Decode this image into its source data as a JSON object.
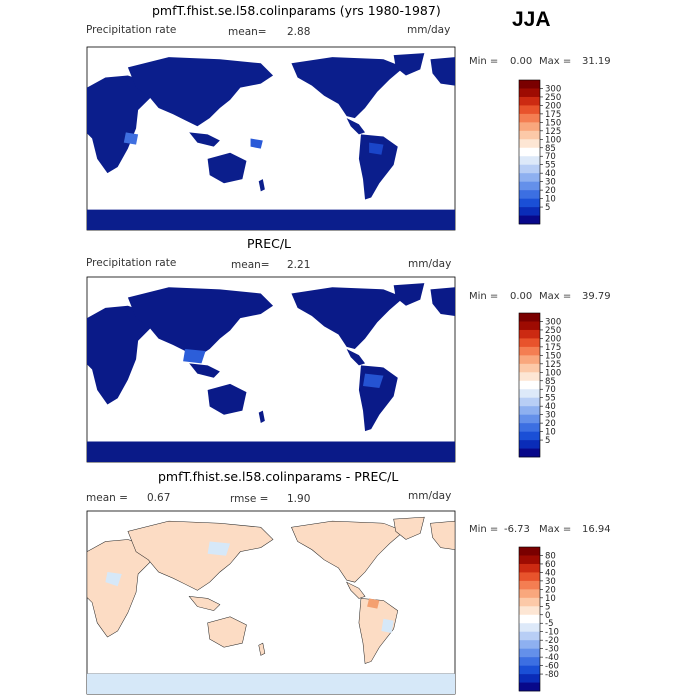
{
  "season": "JJA",
  "colors": {
    "ocean": "#ffffff",
    "land_low": "#0b1e8c",
    "diff_pos": "#fcdcc4",
    "diff_neg": "#d6e8f8"
  },
  "colorbar_palette_precip": [
    "#08088a",
    "#0a2cb8",
    "#1a4fd6",
    "#3c6fe2",
    "#6490ea",
    "#8eb0f0",
    "#b8cef5",
    "#dde9f9",
    "#ffffff",
    "#fde6d4",
    "#fcc9a8",
    "#f9a77d",
    "#f47e52",
    "#e8532c",
    "#cc2a12",
    "#9e0b02",
    "#7a0000"
  ],
  "colorbar_palette_diff": [
    "#08088a",
    "#0a2cb8",
    "#1a4fd6",
    "#3c6fe2",
    "#6490ea",
    "#8eb0f0",
    "#b8cef5",
    "#dde9f9",
    "#ffffff",
    "#fde6d4",
    "#fcc9a8",
    "#f9a77d",
    "#f47e52",
    "#e8532c",
    "#cc2a12",
    "#9e0b02",
    "#7a0000"
  ],
  "panels": [
    {
      "title": "pmfT.fhist.se.l58.colinparams (yrs 1980-1987)",
      "left_label": "Precipitation rate",
      "stat_label": "mean=",
      "stat_value": "2.88",
      "units": "mm/day",
      "min_label": "Min =",
      "min_value": "0.00",
      "max_label": "Max =",
      "max_value": "31.19",
      "colorbar_ticks": [
        "300",
        "250",
        "200",
        "175",
        "150",
        "125",
        "100",
        "85",
        "70",
        "55",
        "40",
        "30",
        "20",
        "10",
        "5"
      ],
      "map_style": "precip"
    },
    {
      "title": "PREC/L",
      "left_label": "Precipitation rate",
      "stat_label": "mean=",
      "stat_value": "2.21",
      "units": "mm/day",
      "min_label": "Min =",
      "min_value": "0.00",
      "max_label": "Max =",
      "max_value": "39.79",
      "colorbar_ticks": [
        "300",
        "250",
        "200",
        "175",
        "150",
        "125",
        "100",
        "85",
        "70",
        "55",
        "40",
        "30",
        "20",
        "10",
        "5"
      ],
      "map_style": "precip_obs"
    },
    {
      "title": "pmfT.fhist.se.l58.colinparams - PREC/L",
      "left_label": "mean =",
      "left_value": "0.67",
      "stat_label": "rmse =",
      "stat_value": "1.90",
      "units": "mm/day",
      "min_label": "Min =",
      "min_value": "-6.73",
      "max_label": "Max =",
      "max_value": "16.94",
      "colorbar_ticks": [
        "80",
        "60",
        "40",
        "30",
        "20",
        "10",
        "5",
        "0",
        "-5",
        "-10",
        "-20",
        "-30",
        "-40",
        "-60",
        "-80"
      ],
      "map_style": "diff"
    }
  ]
}
